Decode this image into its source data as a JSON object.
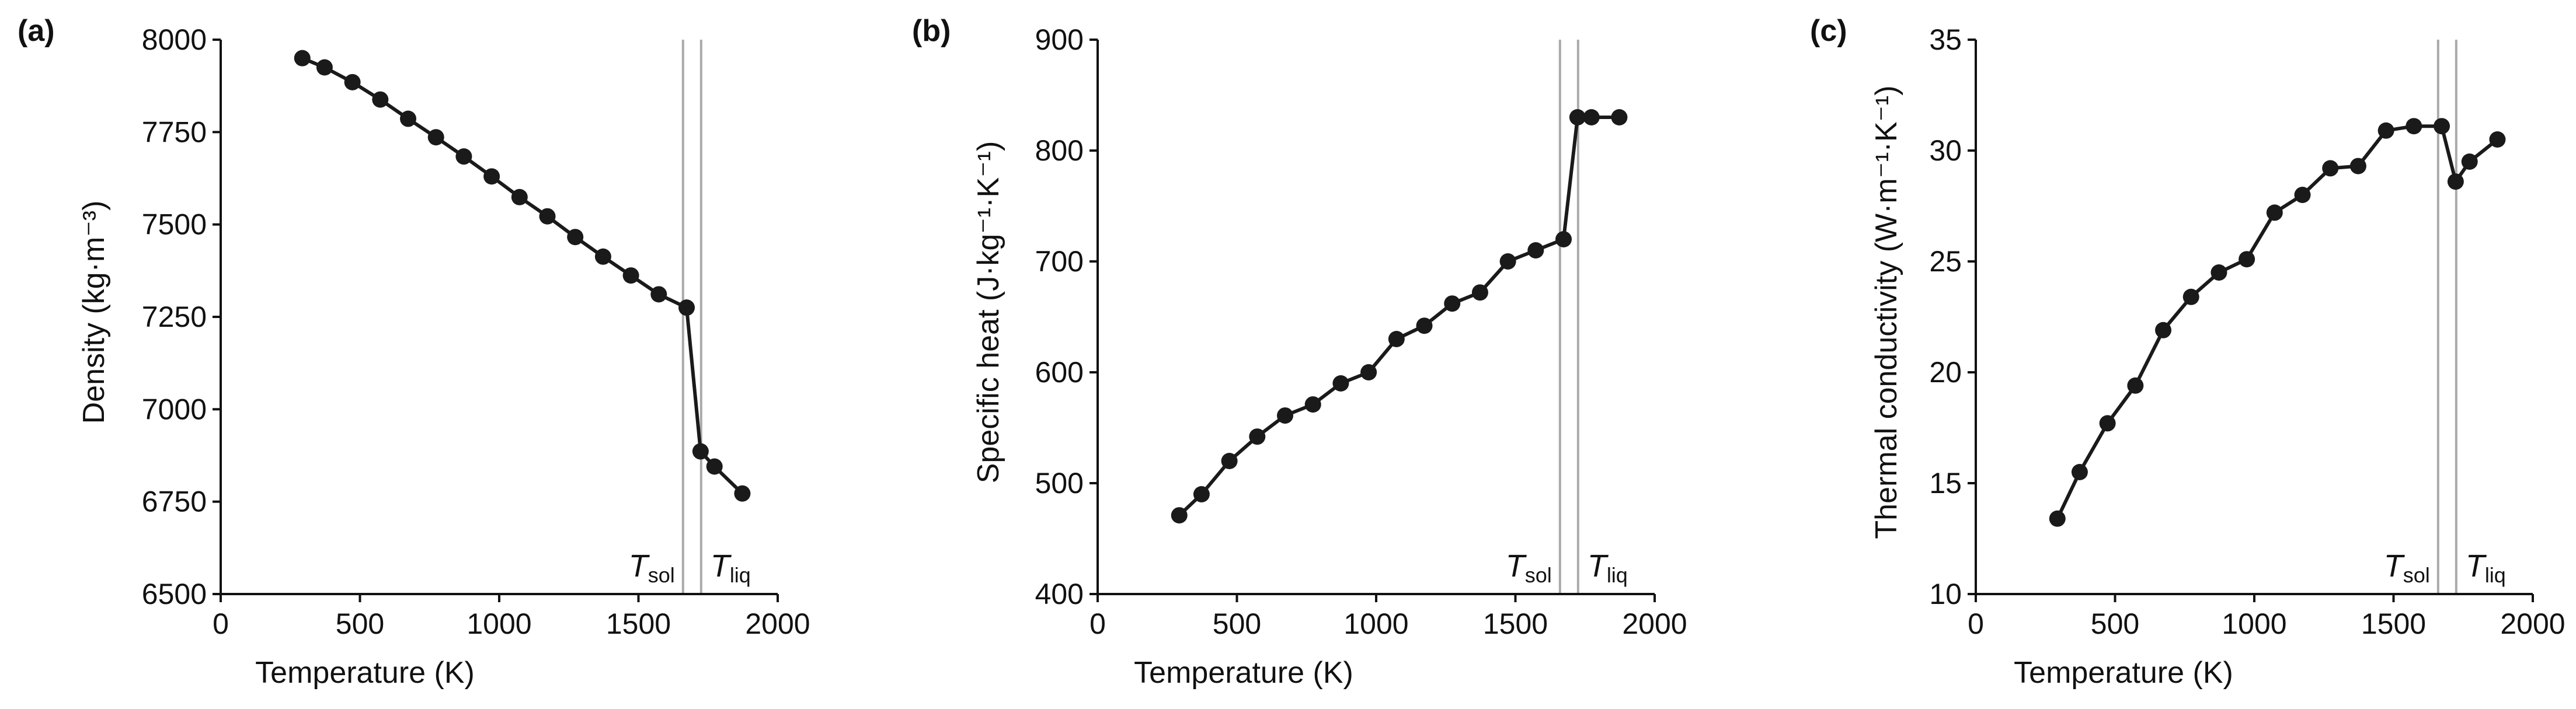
{
  "figure": {
    "background": "#ffffff",
    "series_color": "#1a1a1a",
    "transition_line_color": "#aaaaaa"
  },
  "chart_data": [
    {
      "type": "line",
      "panel_label": "(a)",
      "xlabel": "Temperature (K)",
      "ylabel": "Density (kg·m⁻³)",
      "xlim": [
        0,
        2000
      ],
      "ylim": [
        6500,
        8000
      ],
      "xticks": [
        0,
        500,
        1000,
        1500,
        2000
      ],
      "yticks": [
        6500,
        6750,
        7000,
        7250,
        7500,
        7750,
        8000
      ],
      "x": [
        293,
        373,
        473,
        573,
        673,
        773,
        873,
        973,
        1073,
        1173,
        1273,
        1373,
        1473,
        1573,
        1673,
        1723,
        1773,
        1873
      ],
      "y": [
        7950,
        7925,
        7885,
        7838,
        7786,
        7736,
        7684,
        7630,
        7574,
        7522,
        7466,
        7413,
        7362,
        7311,
        7275,
        6886,
        6845,
        6772
      ],
      "transition_lines": [
        {
          "name": "T_sol",
          "x": 1660,
          "label": "T",
          "sub": "sol"
        },
        {
          "name": "T_liq",
          "x": 1725,
          "label": "T",
          "sub": "liq"
        }
      ]
    },
    {
      "type": "line",
      "panel_label": "(b)",
      "xlabel": "Temperature (K)",
      "ylabel": "Specific heat (J·kg⁻¹·K⁻¹)",
      "xlim": [
        0,
        2000
      ],
      "ylim": [
        400,
        900
      ],
      "xticks": [
        0,
        500,
        1000,
        1500,
        2000
      ],
      "yticks": [
        400,
        500,
        600,
        700,
        800,
        900
      ],
      "x": [
        293,
        373,
        473,
        573,
        673,
        773,
        873,
        973,
        1073,
        1173,
        1273,
        1373,
        1473,
        1573,
        1673,
        1723,
        1773,
        1873
      ],
      "y": [
        471,
        490,
        520,
        542,
        561,
        571,
        590,
        600,
        630,
        642,
        662,
        672,
        700,
        710,
        720,
        830,
        830,
        830
      ],
      "transition_lines": [
        {
          "name": "T_sol",
          "x": 1660,
          "label": "T",
          "sub": "sol"
        },
        {
          "name": "T_liq",
          "x": 1725,
          "label": "T",
          "sub": "liq"
        }
      ]
    },
    {
      "type": "line",
      "panel_label": "(c)",
      "xlabel": "Temperature (K)",
      "ylabel": "Thermal conductivity (W·m⁻¹·K⁻¹)",
      "xlim": [
        0,
        2000
      ],
      "ylim": [
        10,
        35
      ],
      "xticks": [
        0,
        500,
        1000,
        1500,
        2000
      ],
      "yticks": [
        10,
        15,
        20,
        25,
        30,
        35
      ],
      "x": [
        293,
        373,
        473,
        573,
        673,
        773,
        873,
        973,
        1073,
        1173,
        1273,
        1373,
        1473,
        1573,
        1673,
        1723,
        1773,
        1873
      ],
      "y": [
        13.4,
        15.5,
        17.7,
        19.4,
        21.9,
        23.4,
        24.5,
        25.1,
        27.2,
        28.0,
        29.2,
        29.3,
        30.9,
        31.1,
        31.1,
        28.6,
        29.5,
        30.5
      ],
      "transition_lines": [
        {
          "name": "T_sol",
          "x": 1660,
          "label": "T",
          "sub": "sol"
        },
        {
          "name": "T_liq",
          "x": 1725,
          "label": "T",
          "sub": "liq"
        }
      ]
    }
  ]
}
